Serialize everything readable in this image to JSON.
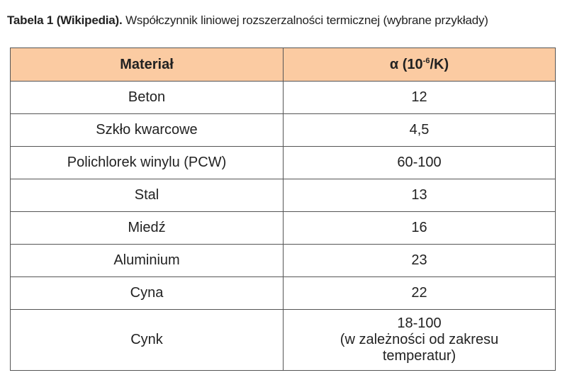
{
  "caption": {
    "label": "Tabela 1 (Wikipedia).",
    "text": "Współczynnik liniowej rozszerzalności termicznej (wybrane przykłady)"
  },
  "table": {
    "header": [
      {
        "text": "Materiał"
      },
      {
        "text": "α (10",
        "sup": "-6",
        "tail": "/K)"
      }
    ],
    "rows": [
      [
        "Beton",
        [
          "12"
        ]
      ],
      [
        "Szkło kwarcowe",
        [
          "4,5"
        ]
      ],
      [
        "Polichlorek winylu (PCW)",
        [
          "60-100"
        ]
      ],
      [
        "Stal",
        [
          "13"
        ]
      ],
      [
        "Miedź",
        [
          "16"
        ]
      ],
      [
        "Aluminium",
        [
          "23"
        ]
      ],
      [
        "Cyna",
        [
          "22"
        ]
      ],
      [
        "Cynk",
        [
          "18-100",
          "(w zależności od zakresu",
          "temperatur)"
        ]
      ]
    ]
  }
}
